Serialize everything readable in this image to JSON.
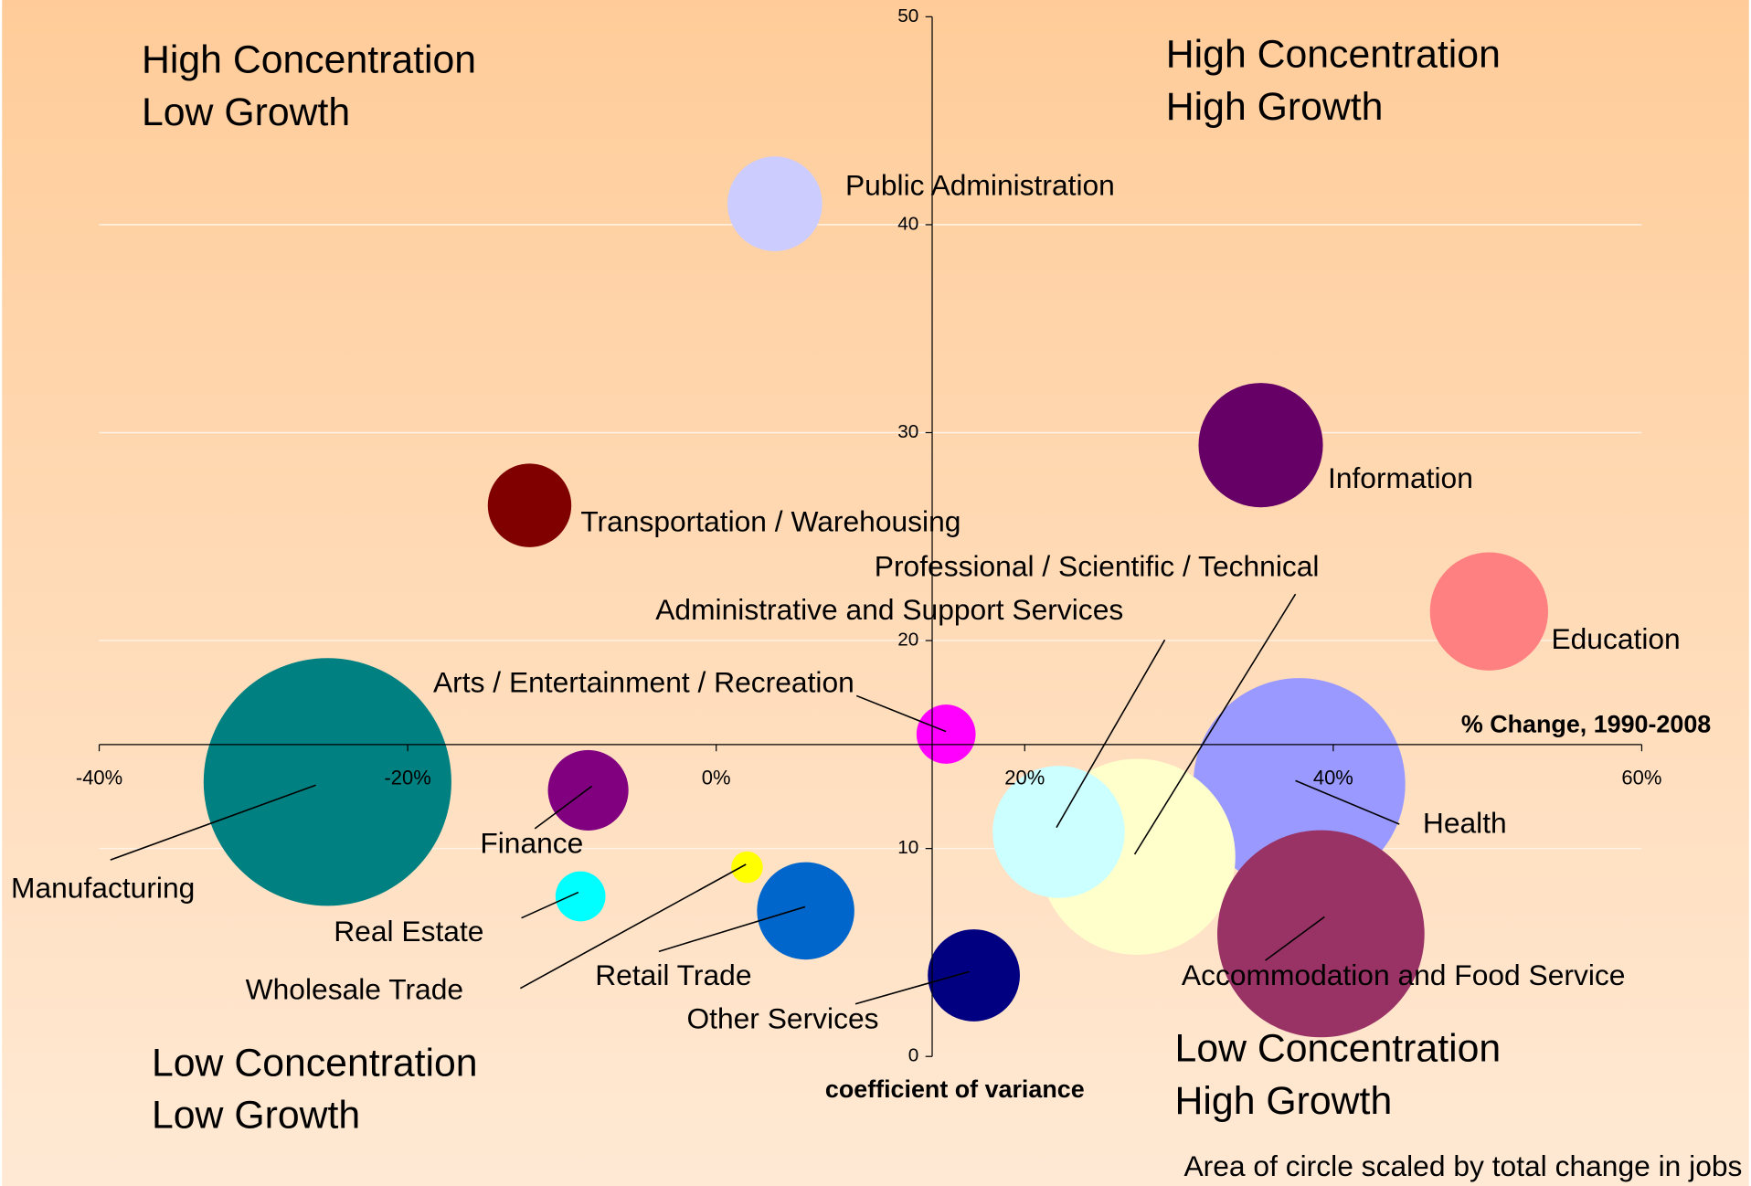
{
  "chart_data": {
    "type": "bubble",
    "x_label": "% Change, 1990-2008",
    "y_label": "coefficient of variance",
    "annotations": [
      [
        "High Concentration",
        "Low Growth"
      ],
      [
        "High Concentration",
        "High Growth"
      ],
      [
        "Low Concentration",
        "Low Growth"
      ],
      [
        "Low Concentration",
        "High Growth"
      ]
    ],
    "footnote": "Area of circle scaled by total change in jobs",
    "xlim": [
      -40,
      60
    ],
    "xticks": [
      {
        "value": -40,
        "label": "-40%"
      },
      {
        "value": -20,
        "label": "-20%"
      },
      {
        "value": 0,
        "label": "0%"
      },
      {
        "value": 20,
        "label": "20%"
      },
      {
        "value": 40,
        "label": "40%"
      },
      {
        "value": 60,
        "label": "60%"
      }
    ],
    "ylim": [
      0,
      50
    ],
    "yticks": [
      0,
      10,
      20,
      30,
      40,
      50
    ],
    "x_axis_at": 15,
    "y_axis_at": 14,
    "grid": true,
    "points": [
      {
        "name": "Public Administration",
        "color": "#ccccff",
        "x": 3.8,
        "y": 41.0,
        "size": 18
      },
      {
        "name": "Information",
        "color": "#660066",
        "x": 35.3,
        "y": 29.4,
        "size": 31
      },
      {
        "name": "Transportation / Warehousing",
        "color": "#800000",
        "x": -12.1,
        "y": 26.5,
        "size": 14
      },
      {
        "name": "Education",
        "color": "#ff8080",
        "x": 50.1,
        "y": 21.4,
        "size": 28
      },
      {
        "name": "Arts / Entertainment / Recreation",
        "color": "#ff00ff",
        "x": 14.9,
        "y": 15.5,
        "size": 7
      },
      {
        "name": "Manufacturing",
        "color": "#008080",
        "x": -25.2,
        "y": 13.2,
        "size": 123
      },
      {
        "name": "Finance",
        "color": "#800080",
        "x": -8.3,
        "y": 12.8,
        "size": 13
      },
      {
        "name": "Health",
        "color": "#9999ff",
        "x": 37.8,
        "y": 13.1,
        "size": 90
      },
      {
        "name": "Professional / Scientific / Technical",
        "color": "#ffffcc",
        "x": 27.3,
        "y": 9.6,
        "size": 77
      },
      {
        "name": "Administrative and Support Services",
        "color": "#ccffff",
        "x": 22.2,
        "y": 10.8,
        "size": 35
      },
      {
        "name": "Accommodation and Food Service",
        "color": "#993366",
        "x": 39.2,
        "y": 5.9,
        "size": 86
      },
      {
        "name": "Wholesale Trade",
        "color": "#ffff00",
        "x": 2.0,
        "y": 9.1,
        "size": 2
      },
      {
        "name": "Real Estate",
        "color": "#00ffff",
        "x": -8.8,
        "y": 7.7,
        "size": 5
      },
      {
        "name": "Retail Trade",
        "color": "#0066cc",
        "x": 5.8,
        "y": 7.0,
        "size": 19
      },
      {
        "name": "Other Services",
        "color": "#000080",
        "x": 16.7,
        "y": 3.9,
        "size": 17
      }
    ]
  }
}
